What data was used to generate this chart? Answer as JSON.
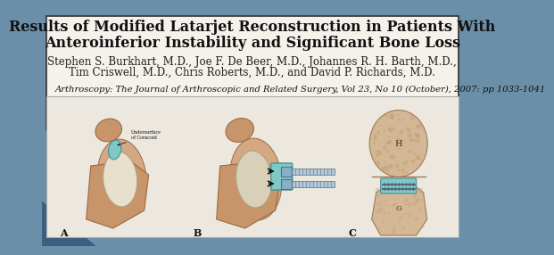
{
  "bg_color": "#6b8fa8",
  "slide_bg": "#d0d8dd",
  "paper_bg": "#f5f0e8",
  "title_line1": "Results of Modified Latarjet Reconstruction in Patients With",
  "title_line2": "Anteroinferior Instability and Significant Bone Loss",
  "authors": "Stephen S. Burkhart, M.D., Joe F. De Beer, M.D., Johannes R. H. Barth, M.D.,",
  "authors2": "Tim Criswell, M.D., Chris Roberts, M.D., and David P. Richards, M.D.",
  "journal": "Arthroscopy: The Journal of Arthroscopic and Related Surgery, Vol 23, No 10 (October), 2007: pp 1033-1041",
  "title_fontsize": 11.5,
  "author_fontsize": 8.5,
  "journal_fontsize": 7.2,
  "box_color": "#e8e0d0",
  "box_border": "#333333",
  "image_bg": "#f0ebe0",
  "label_a": "A",
  "label_b": "B",
  "label_c": "C"
}
